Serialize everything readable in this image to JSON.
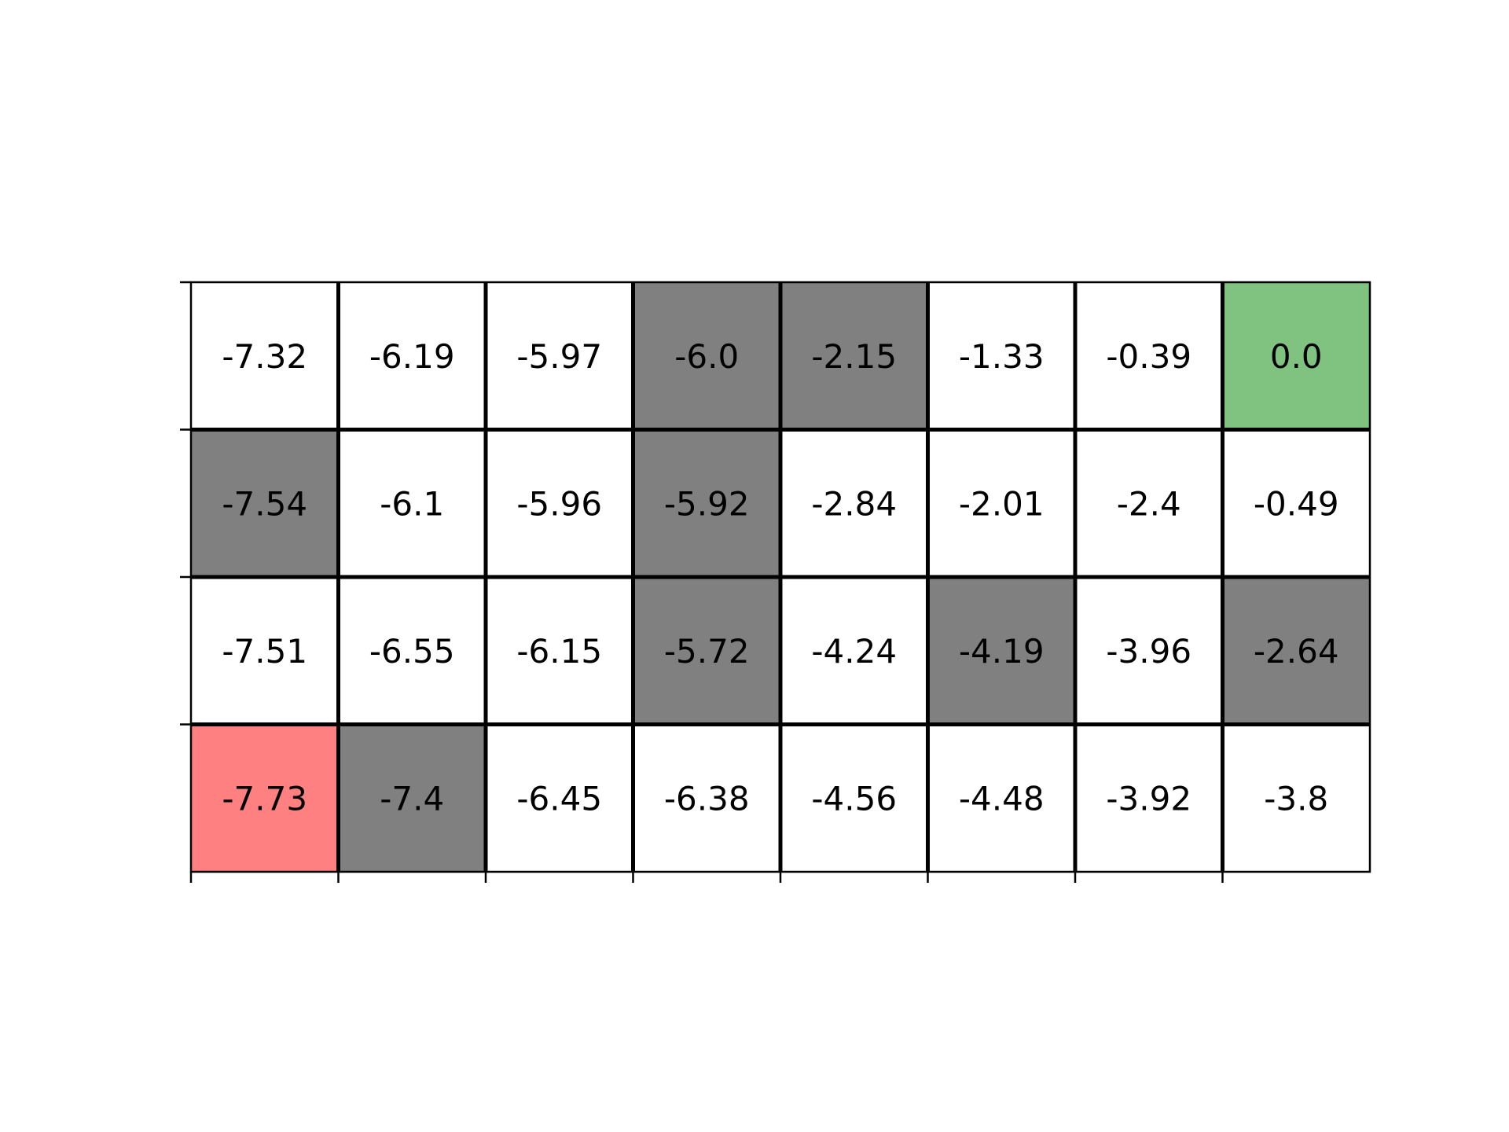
{
  "chart_data": {
    "type": "heatmap",
    "title": "",
    "xlabel": "",
    "ylabel": "",
    "grid": true,
    "rows": 4,
    "cols": 8,
    "values": [
      [
        "-7.32",
        "-6.19",
        "-5.97",
        "-6.0",
        "-2.15",
        "-1.33",
        "-0.39",
        "0.0"
      ],
      [
        "-7.54",
        "-6.1",
        "-5.96",
        "-5.92",
        "-2.84",
        "-2.01",
        "-2.4",
        "-0.49"
      ],
      [
        "-7.51",
        "-6.55",
        "-6.15",
        "-5.72",
        "-4.24",
        "-4.19",
        "-3.96",
        "-2.64"
      ],
      [
        "-7.73",
        "-7.4",
        "-6.45",
        "-6.38",
        "-4.56",
        "-4.48",
        "-3.92",
        "-3.8"
      ]
    ],
    "cell_types": [
      [
        "empty",
        "empty",
        "empty",
        "wall",
        "wall",
        "empty",
        "empty",
        "goal"
      ],
      [
        "wall",
        "empty",
        "empty",
        "wall",
        "empty",
        "empty",
        "empty",
        "empty"
      ],
      [
        "empty",
        "empty",
        "empty",
        "wall",
        "empty",
        "wall",
        "empty",
        "wall"
      ],
      [
        "start",
        "wall",
        "empty",
        "empty",
        "empty",
        "empty",
        "empty",
        "empty"
      ]
    ],
    "colors": {
      "empty": "#ffffff",
      "wall": "#808080",
      "goal": "#80c280",
      "start": "#ff8080",
      "line": "#000000",
      "text": "#000000"
    }
  }
}
